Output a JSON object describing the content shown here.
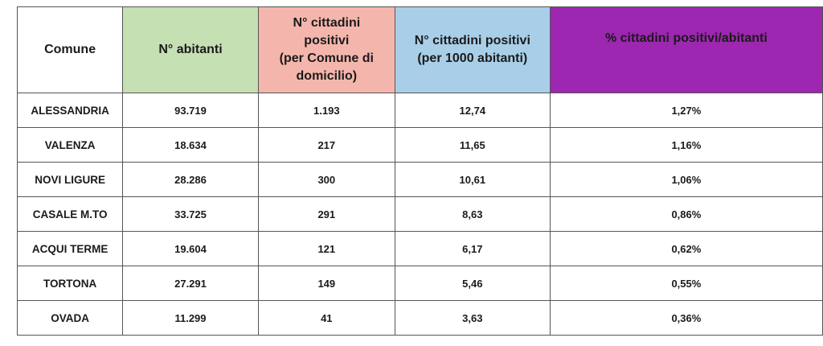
{
  "table": {
    "headers": [
      "Comune",
      "N° abitanti",
      "N° cittadini positivi (per Comune di domicilio)",
      "N° cittadini positivi (per 1000 abitanti)",
      "% cittadini positivi/abitanti"
    ],
    "header_lines": [
      [
        "Comune"
      ],
      [
        "N° abitanti"
      ],
      [
        "N° cittadini",
        "positivi",
        "(per Comune di",
        "domicilio)"
      ],
      [
        "N° cittadini positivi",
        "(per 1000 abitanti)"
      ],
      [
        "% cittadini positivi/abitanti"
      ]
    ],
    "header_colors": [
      "#ffffff",
      "#c5e0b3",
      "#f4b6ac",
      "#a9cfe8",
      "#9d27b0"
    ],
    "rows": [
      [
        "ALESSANDRIA",
        "93.719",
        "1.193",
        "12,74",
        "1,27%"
      ],
      [
        "VALENZA",
        "18.634",
        "217",
        "11,65",
        "1,16%"
      ],
      [
        "NOVI LIGURE",
        "28.286",
        "300",
        "10,61",
        "1,06%"
      ],
      [
        "CASALE M.TO",
        "33.725",
        "291",
        "8,63",
        "0,86%"
      ],
      [
        "ACQUI TERME",
        "19.604",
        "121",
        "6,17",
        "0,62%"
      ],
      [
        "TORTONA",
        "27.291",
        "149",
        "5,46",
        "0,55%"
      ],
      [
        "OVADA",
        "11.299",
        "41",
        "3,63",
        "0,36%"
      ]
    ]
  }
}
